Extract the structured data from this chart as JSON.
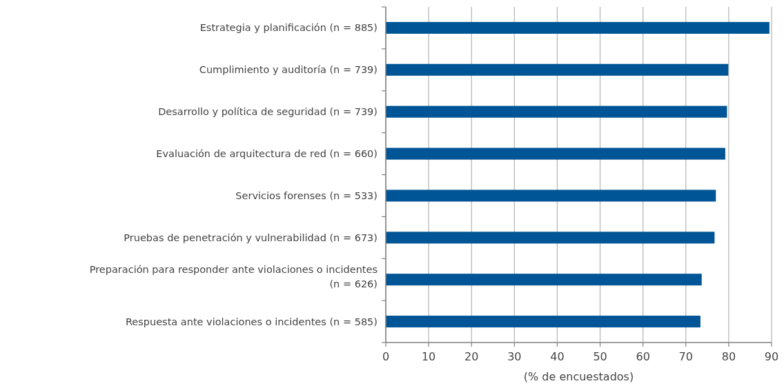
{
  "chart_data": {
    "type": "bar",
    "orientation": "horizontal",
    "xlabel": "(% de encuestados)",
    "categories": [
      "Estrategia y planificación (n = 885)",
      "Cumplimiento y auditoría (n = 739)",
      "Desarrollo y política de seguridad (n = 739)",
      "Evaluación de arquitectura de red (n = 660)",
      "Servicios forenses (n = 533)",
      "Pruebas de penetración y vulnerabilidad (n = 673)",
      "Preparación para responder ante violaciones o incidentes  (n = 626)",
      "Respuesta ante violaciones o incidentes (n = 585)"
    ],
    "values": [
      89.5,
      79.9,
      79.6,
      79.2,
      77.0,
      76.7,
      73.7,
      73.4
    ],
    "color": "#005596",
    "xlim": [
      0,
      90
    ],
    "xticks": [
      0,
      10,
      20,
      30,
      40,
      50,
      60,
      70,
      80,
      90
    ],
    "grid": "x"
  }
}
